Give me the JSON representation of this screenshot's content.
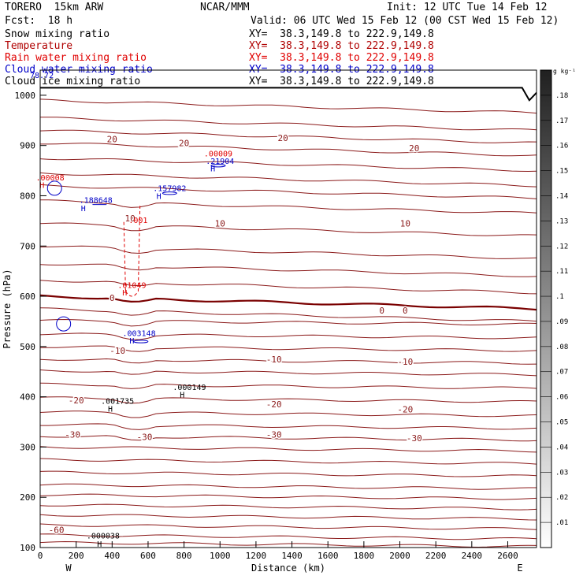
{
  "header": {
    "model": "TORERO  15km ARW",
    "org": "NCAR/MMM",
    "init": "Init: 12 UTC Tue 14 Feb 12",
    "fcst": "Fcst:  18 h",
    "valid": "Valid: 06 UTC Wed 15 Feb 12 (00 CST Wed 15 Feb 12)"
  },
  "fields": [
    {
      "label": "Snow mixing ratio",
      "xy": "XY=  38.3,149.8 to 222.9,149.8",
      "color": "#000000"
    },
    {
      "label": "Temperature",
      "xy": "XY=  38.3,149.8 to 222.9,149.8",
      "color": "#b00000"
    },
    {
      "label": "Rain water mixing ratio",
      "xy": "XY=  38.3,149.8 to 222.9,149.8",
      "color": "#e00000"
    },
    {
      "label": "Cloud water mixing ratio",
      "xy": "XY=  38.3,149.8 to 222.9,149.8",
      "color": "#0000c8"
    },
    {
      "label": "Cloud ice mixing ratio",
      "xy": "XY=  38.3,149.8 to 222.9,149.8",
      "color": "#000000"
    }
  ],
  "chart_data": {
    "type": "contour cross-section",
    "xlabel": "Distance (km)",
    "ylabel": "Pressure (hPa)",
    "xlim": [
      0,
      2760
    ],
    "ylim": [
      1050,
      100
    ],
    "x_ticks": [
      0,
      200,
      400,
      600,
      800,
      1000,
      1200,
      1400,
      1600,
      1800,
      2000,
      2200,
      2400,
      2600
    ],
    "y_ticks": [
      100,
      200,
      300,
      400,
      500,
      600,
      700,
      800,
      900,
      1000
    ],
    "endpoints": {
      "left": "W",
      "right": "E"
    },
    "colorbar": {
      "unit": "g kg⁻¹",
      "ticks": [
        ".01",
        ".02",
        ".03",
        ".04",
        ".05",
        ".06",
        ".07",
        ".08",
        ".09",
        ".1",
        ".11",
        ".12",
        ".13",
        ".14",
        ".15",
        ".16",
        ".17",
        ".18"
      ],
      "max": 0.19
    },
    "temperature_contours": [
      {
        "value": -60,
        "labels": [
          {
            "text": "-60",
            "x": 90,
            "p": 135
          }
        ]
      },
      {
        "value": -30,
        "labels": [
          {
            "text": "-30",
            "x": 180,
            "p": 325
          },
          {
            "text": "-30",
            "x": 580,
            "p": 320
          },
          {
            "text": "-30",
            "x": 1300,
            "p": 325
          },
          {
            "text": "-30",
            "x": 2080,
            "p": 318
          }
        ]
      },
      {
        "value": -20,
        "labels": [
          {
            "text": "-20",
            "x": 200,
            "p": 393
          },
          {
            "text": "-20",
            "x": 1300,
            "p": 385
          },
          {
            "text": "-20",
            "x": 2030,
            "p": 375
          }
        ]
      },
      {
        "value": -10,
        "labels": [
          {
            "text": "-10",
            "x": 430,
            "p": 492
          },
          {
            "text": "-10",
            "x": 1300,
            "p": 475
          },
          {
            "text": "-10",
            "x": 2030,
            "p": 470
          }
        ]
      },
      {
        "value": 0,
        "labels": [
          {
            "text": "0",
            "x": 400,
            "p": 597
          },
          {
            "text": "0",
            "x": 1900,
            "p": 572
          },
          {
            "text": "0",
            "x": 2030,
            "p": 572
          }
        ]
      },
      {
        "value": 10,
        "labels": [
          {
            "text": "10",
            "x": 500,
            "p": 755
          },
          {
            "text": "10",
            "x": 1000,
            "p": 745
          },
          {
            "text": "10",
            "x": 2030,
            "p": 745
          }
        ]
      },
      {
        "value": 20,
        "labels": [
          {
            "text": "20",
            "x": 400,
            "p": 913
          },
          {
            "text": "20",
            "x": 800,
            "p": 905
          },
          {
            "text": "20",
            "x": 1350,
            "p": 915
          },
          {
            "text": "20",
            "x": 2080,
            "p": 895
          }
        ]
      }
    ],
    "annotations": [
      {
        "text": "H",
        "x": 390,
        "p": 377,
        "color": "#000000"
      },
      {
        "text": ".001735",
        "x": 430,
        "p": 392,
        "color": "#000000"
      },
      {
        "text": "H",
        "x": 790,
        "p": 405,
        "color": "#000000"
      },
      {
        "text": ".000149",
        "x": 830,
        "p": 420,
        "color": "#000000"
      },
      {
        "text": "H",
        "x": 330,
        "p": 108,
        "color": "#000000"
      },
      {
        "text": ".000038",
        "x": 350,
        "p": 124,
        "color": "#000000"
      },
      {
        "text": "H",
        "x": 510,
        "p": 512,
        "color": "#0000c8"
      },
      {
        "text": ".003148",
        "x": 550,
        "p": 527,
        "color": "#0000c8"
      },
      {
        "text": "H",
        "x": 470,
        "p": 608,
        "color": "#e00000"
      },
      {
        "text": ".01049",
        "x": 510,
        "p": 623,
        "color": "#e00000"
      },
      {
        "text": ".001",
        "x": 545,
        "p": 752,
        "color": "#e00000"
      },
      {
        "text": "H",
        "x": 240,
        "p": 776,
        "color": "#0000c8"
      },
      {
        "text": ".188648",
        "x": 310,
        "p": 792,
        "color": "#0000c8"
      },
      {
        "text": "H",
        "x": 660,
        "p": 800,
        "color": "#0000c8"
      },
      {
        "text": ".157982",
        "x": 720,
        "p": 816,
        "color": "#0000c8"
      },
      {
        "text": "H",
        "x": 10,
        "p": 822,
        "color": "#e00000"
      },
      {
        "text": ".00008",
        "x": 55,
        "p": 837,
        "color": "#e00000"
      },
      {
        "text": "H",
        "x": 960,
        "p": 855,
        "color": "#0000c8"
      },
      {
        "text": ".21904",
        "x": 1000,
        "p": 870,
        "color": "#0000c8"
      },
      {
        "text": ".00009",
        "x": 990,
        "p": 885,
        "color": "#e00000"
      }
    ],
    "inset_value": "78.72"
  }
}
